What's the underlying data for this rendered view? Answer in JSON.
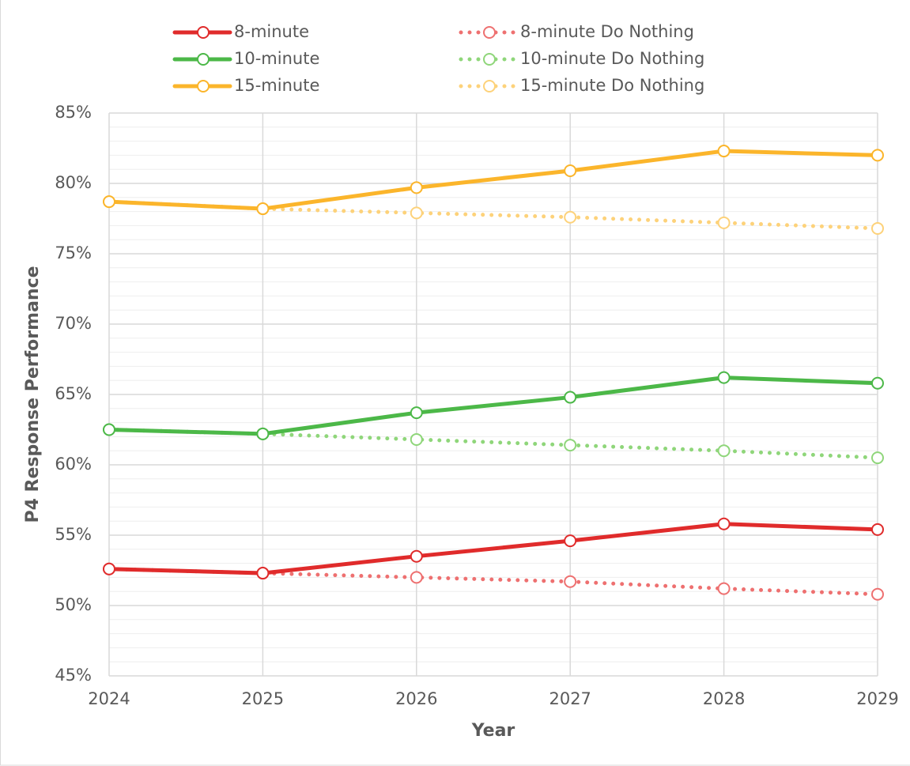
{
  "chart_data": {
    "type": "line",
    "x_label": "Year",
    "y_label": "P4 Response Performance",
    "x": [
      2024,
      2025,
      2026,
      2027,
      2028,
      2029
    ],
    "xlim": [
      2024,
      2029
    ],
    "xticks": [
      2024,
      2025,
      2026,
      2027,
      2028,
      2029
    ],
    "ylim": [
      45,
      85
    ],
    "yticks": [
      {
        "value": 45,
        "label": "45%"
      },
      {
        "value": 50,
        "label": "50%"
      },
      {
        "value": 55,
        "label": "55%"
      },
      {
        "value": 60,
        "label": "60%"
      },
      {
        "value": 65,
        "label": "65%"
      },
      {
        "value": 70,
        "label": "70%"
      },
      {
        "value": 75,
        "label": "75%"
      },
      {
        "value": 80,
        "label": "80%"
      },
      {
        "value": 85,
        "label": "85%"
      }
    ],
    "minor_yticks": [
      46,
      47,
      48,
      49,
      51,
      52,
      53,
      54,
      56,
      57,
      58,
      59,
      61,
      62,
      63,
      64,
      66,
      67,
      68,
      69,
      71,
      72,
      73,
      74,
      76,
      77,
      78,
      79,
      81,
      82,
      83,
      84
    ],
    "grid": true,
    "legend": "top",
    "series": [
      {
        "name": "8-minute",
        "color": "#e02b2b",
        "style": "solid",
        "values": [
          52.6,
          52.3,
          53.5,
          54.6,
          55.8,
          55.4
        ]
      },
      {
        "name": "8-minute Do Nothing",
        "color": "#ee7070",
        "style": "dotted",
        "values": [
          52.6,
          52.3,
          52.0,
          51.7,
          51.2,
          50.8
        ]
      },
      {
        "name": "10-minute",
        "color": "#4cb848",
        "style": "solid",
        "values": [
          62.5,
          62.2,
          63.7,
          64.8,
          66.2,
          65.8
        ]
      },
      {
        "name": "10-minute Do Nothing",
        "color": "#8fd67a",
        "style": "dotted",
        "values": [
          62.5,
          62.2,
          61.8,
          61.4,
          61.0,
          60.5
        ]
      },
      {
        "name": "15-minute",
        "color": "#fbb52b",
        "style": "solid",
        "values": [
          78.7,
          78.2,
          79.7,
          80.9,
          82.3,
          82.0
        ]
      },
      {
        "name": "15-minute Do Nothing",
        "color": "#fdd27a",
        "style": "dotted",
        "values": [
          78.7,
          78.2,
          77.9,
          77.6,
          77.2,
          76.8
        ]
      }
    ]
  }
}
